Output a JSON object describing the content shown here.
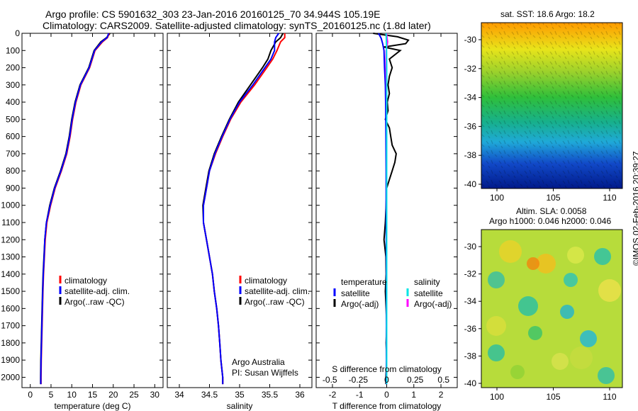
{
  "header": {
    "line1": "Argo profile: CS 5901632_303 23-Jan-2016 20160125_70 34.944S 105.19E",
    "line2": "Climatology: CARS2009. Satellite-adjusted climatology: synTS_20160125.nc (1.8d later)"
  },
  "maps": {
    "sst_header": "sat. SST: 18.6 Argo: 18.2",
    "sla_header1": "Altim. SLA: 0.0058",
    "sla_header2": "Argo h1000: 0.046 h2000: 0.046",
    "lat_ticks": [
      "-30",
      "-32",
      "-34",
      "-36",
      "-38",
      "-40"
    ],
    "lon_ticks": [
      "100",
      "105",
      "110"
    ]
  },
  "credit": "©IMOS 02-Feb-2016 20:39:27",
  "colors": {
    "climatology": "#ff0000",
    "satellite": "#0000ff",
    "argo": "#000000",
    "salinity_satellite": "#00e5e5",
    "salinity_argo": "#ff00ff"
  },
  "chart_data": [
    {
      "type": "line",
      "xlabel": "temperature (deg C)",
      "ylabel": "",
      "xlim": [
        -2,
        32
      ],
      "ylim": [
        2060,
        0
      ],
      "x_ticks": [
        0,
        5,
        10,
        15,
        20,
        25,
        30
      ],
      "y_ticks": [
        0,
        100,
        200,
        300,
        400,
        500,
        600,
        700,
        800,
        900,
        1000,
        1100,
        1200,
        1300,
        1400,
        1500,
        1600,
        1700,
        1800,
        1900,
        2000
      ],
      "legend": [
        "climatology",
        "satellite-adj. clim.",
        "Argo(..raw -QC)"
      ],
      "series": [
        {
          "name": "climatology",
          "depth": [
            0,
            25,
            50,
            100,
            200,
            300,
            400,
            500,
            600,
            700,
            800,
            900,
            1000,
            1100,
            1200,
            1300,
            1400,
            1500,
            1600,
            1700,
            1800,
            1900,
            2000,
            2040
          ],
          "values": [
            19.0,
            18.6,
            17.4,
            15.6,
            14.3,
            12.2,
            11.0,
            10.2,
            9.6,
            8.8,
            7.5,
            6.0,
            4.9,
            4.0,
            3.6,
            3.4,
            3.2,
            3.05,
            2.95,
            2.85,
            2.75,
            2.65,
            2.6,
            2.6
          ]
        },
        {
          "name": "satellite-adj. clim.",
          "depth": [
            0,
            25,
            50,
            100,
            200,
            300,
            400,
            500,
            600,
            700,
            800,
            900,
            1000,
            1100,
            1200,
            1300,
            1400,
            1500,
            1600,
            1700,
            1800,
            1900,
            2000,
            2040
          ],
          "values": [
            18.9,
            18.5,
            17.2,
            15.5,
            14.2,
            12.1,
            10.9,
            10.1,
            9.5,
            8.7,
            7.4,
            5.9,
            4.8,
            3.9,
            3.5,
            3.35,
            3.15,
            3.0,
            2.9,
            2.8,
            2.7,
            2.6,
            2.55,
            2.55
          ]
        },
        {
          "name": "Argo(..raw -QC)",
          "depth": [
            0,
            25,
            50,
            100,
            200,
            300,
            400,
            500,
            600,
            700,
            800,
            900,
            1000,
            1100,
            1200,
            1300,
            1400,
            1500,
            1600,
            1700,
            1800,
            1900,
            2000,
            2040
          ],
          "values": [
            19.2,
            18.4,
            17.0,
            15.4,
            14.1,
            12.0,
            10.8,
            10.0,
            9.4,
            8.6,
            7.3,
            5.8,
            4.7,
            3.9,
            3.5,
            3.3,
            3.1,
            2.95,
            2.85,
            2.75,
            2.65,
            2.55,
            2.5,
            2.5
          ]
        }
      ]
    },
    {
      "type": "line",
      "xlabel": "salinity",
      "xlim": [
        33.8,
        36.2
      ],
      "ylim": [
        2060,
        0
      ],
      "x_ticks": [
        34,
        34.5,
        35,
        35.5,
        36
      ],
      "legend": [
        "climatology",
        "satellite-adj. clim.",
        "Argo(..raw -QC)"
      ],
      "annotation": [
        "Argo Australia",
        "PI: Susan Wijffels"
      ],
      "series": [
        {
          "name": "climatology",
          "depth": [
            0,
            25,
            50,
            100,
            150,
            200,
            300,
            400,
            500,
            600,
            700,
            800,
            900,
            1000,
            1100,
            1200,
            1300,
            1400,
            1500,
            1600,
            1700,
            1800,
            1900,
            2000,
            2040
          ],
          "values": [
            35.75,
            35.75,
            35.68,
            35.62,
            35.55,
            35.45,
            35.25,
            35.02,
            34.85,
            34.72,
            34.6,
            34.5,
            34.45,
            34.4,
            34.4,
            34.45,
            34.5,
            34.55,
            34.58,
            34.62,
            34.65,
            34.67,
            34.69,
            34.72,
            34.72
          ]
        },
        {
          "name": "satellite-adj. clim.",
          "depth": [
            0,
            25,
            50,
            100,
            150,
            200,
            300,
            400,
            500,
            600,
            700,
            800,
            900,
            1000,
            1100,
            1200,
            1300,
            1400,
            1500,
            1600,
            1700,
            1800,
            1900,
            2000,
            2040
          ],
          "values": [
            35.65,
            35.6,
            35.58,
            35.58,
            35.52,
            35.42,
            35.22,
            35.0,
            34.84,
            34.71,
            34.59,
            34.5,
            34.45,
            34.4,
            34.4,
            34.45,
            34.5,
            34.55,
            34.58,
            34.62,
            34.65,
            34.67,
            34.69,
            34.72,
            34.72
          ]
        },
        {
          "name": "Argo(..raw -QC)",
          "depth": [
            0,
            25,
            50,
            100,
            150,
            200,
            300,
            400,
            500,
            600,
            700,
            800,
            900,
            1000,
            1100,
            1200,
            1300,
            1400,
            1500,
            1600,
            1700,
            1800,
            1900,
            2000,
            2040
          ],
          "values": [
            35.72,
            35.68,
            35.6,
            35.52,
            35.47,
            35.38,
            35.18,
            34.98,
            34.83,
            34.7,
            34.58,
            34.49,
            34.44,
            34.39,
            34.4,
            34.45,
            34.5,
            34.55,
            34.58,
            34.62,
            34.65,
            34.67,
            34.69,
            34.72,
            34.72
          ]
        }
      ]
    },
    {
      "type": "line",
      "xlabel": "T difference from climatology",
      "x2label": "S difference from climatology",
      "xlim": [
        -2.6,
        2.6
      ],
      "ylim": [
        2060,
        0
      ],
      "x_ticks": [
        -2,
        -1,
        0,
        1,
        2
      ],
      "x2_ticks": [
        "-0.5",
        "-0.25",
        "0",
        "0.25",
        "0.5"
      ],
      "legend_groups": [
        "temperature",
        "salinity"
      ],
      "legend": [
        "satellite",
        "Argo(-adj)",
        "satellite",
        "Argo(-adj)"
      ],
      "series": [
        {
          "name": "satellite",
          "variable": "temperature",
          "depth": [
            0,
            30,
            60,
            100,
            200,
            300,
            400,
            600,
            800,
            1000,
            1500,
            2040
          ],
          "values": [
            -0.3,
            -0.2,
            -0.15,
            -0.1,
            -0.08,
            -0.05,
            -0.04,
            -0.03,
            -0.02,
            -0.02,
            -0.01,
            -0.01
          ]
        },
        {
          "name": "Argo(-adj)",
          "variable": "temperature",
          "depth": [
            0,
            20,
            40,
            60,
            80,
            100,
            150,
            200,
            250,
            300,
            350,
            400,
            450,
            500,
            550,
            600,
            650,
            700,
            750,
            800,
            850,
            900,
            1000,
            1100,
            1200,
            1300,
            1400,
            1500,
            1600,
            1700,
            1800,
            1900,
            2000,
            2040
          ],
          "values": [
            -0.5,
            0.4,
            0.8,
            0.7,
            -0.1,
            0.5,
            0.1,
            0.2,
            0.1,
            0.05,
            0.1,
            0.02,
            0.05,
            -0.05,
            0.1,
            0.15,
            0.2,
            0.35,
            0.3,
            0.2,
            0.1,
            0.0,
            -0.02,
            -0.05,
            -0.1,
            -0.03,
            -0.02,
            -0.05,
            -0.02,
            0.0,
            -0.02,
            0.0,
            -0.03,
            -0.03
          ]
        },
        {
          "name": "satellite",
          "variable": "salinity",
          "depth": [
            0,
            30,
            60,
            100,
            200,
            300,
            400,
            600,
            800,
            1000,
            1500,
            2040
          ],
          "values": [
            -0.02,
            -0.015,
            -0.01,
            -0.005,
            0.0,
            0.0,
            0.0,
            0.0,
            0.0,
            0.0,
            0.0,
            0.0
          ]
        },
        {
          "name": "Argo(-adj)",
          "variable": "salinity",
          "depth": [
            0,
            25,
            50,
            75,
            100,
            150,
            200,
            250,
            300,
            400,
            500,
            600,
            700,
            800,
            900,
            1000,
            1200,
            1400,
            1600,
            1800,
            2000,
            2040
          ],
          "values": [
            0.0,
            0.01,
            0.035,
            0.01,
            -0.02,
            -0.03,
            -0.025,
            -0.02,
            -0.01,
            -0.005,
            0.0,
            0.0,
            0.0,
            0.0,
            0.0,
            0.0,
            0.0,
            0.0,
            0.0,
            0.0,
            0.0,
            0.0
          ]
        }
      ]
    }
  ]
}
